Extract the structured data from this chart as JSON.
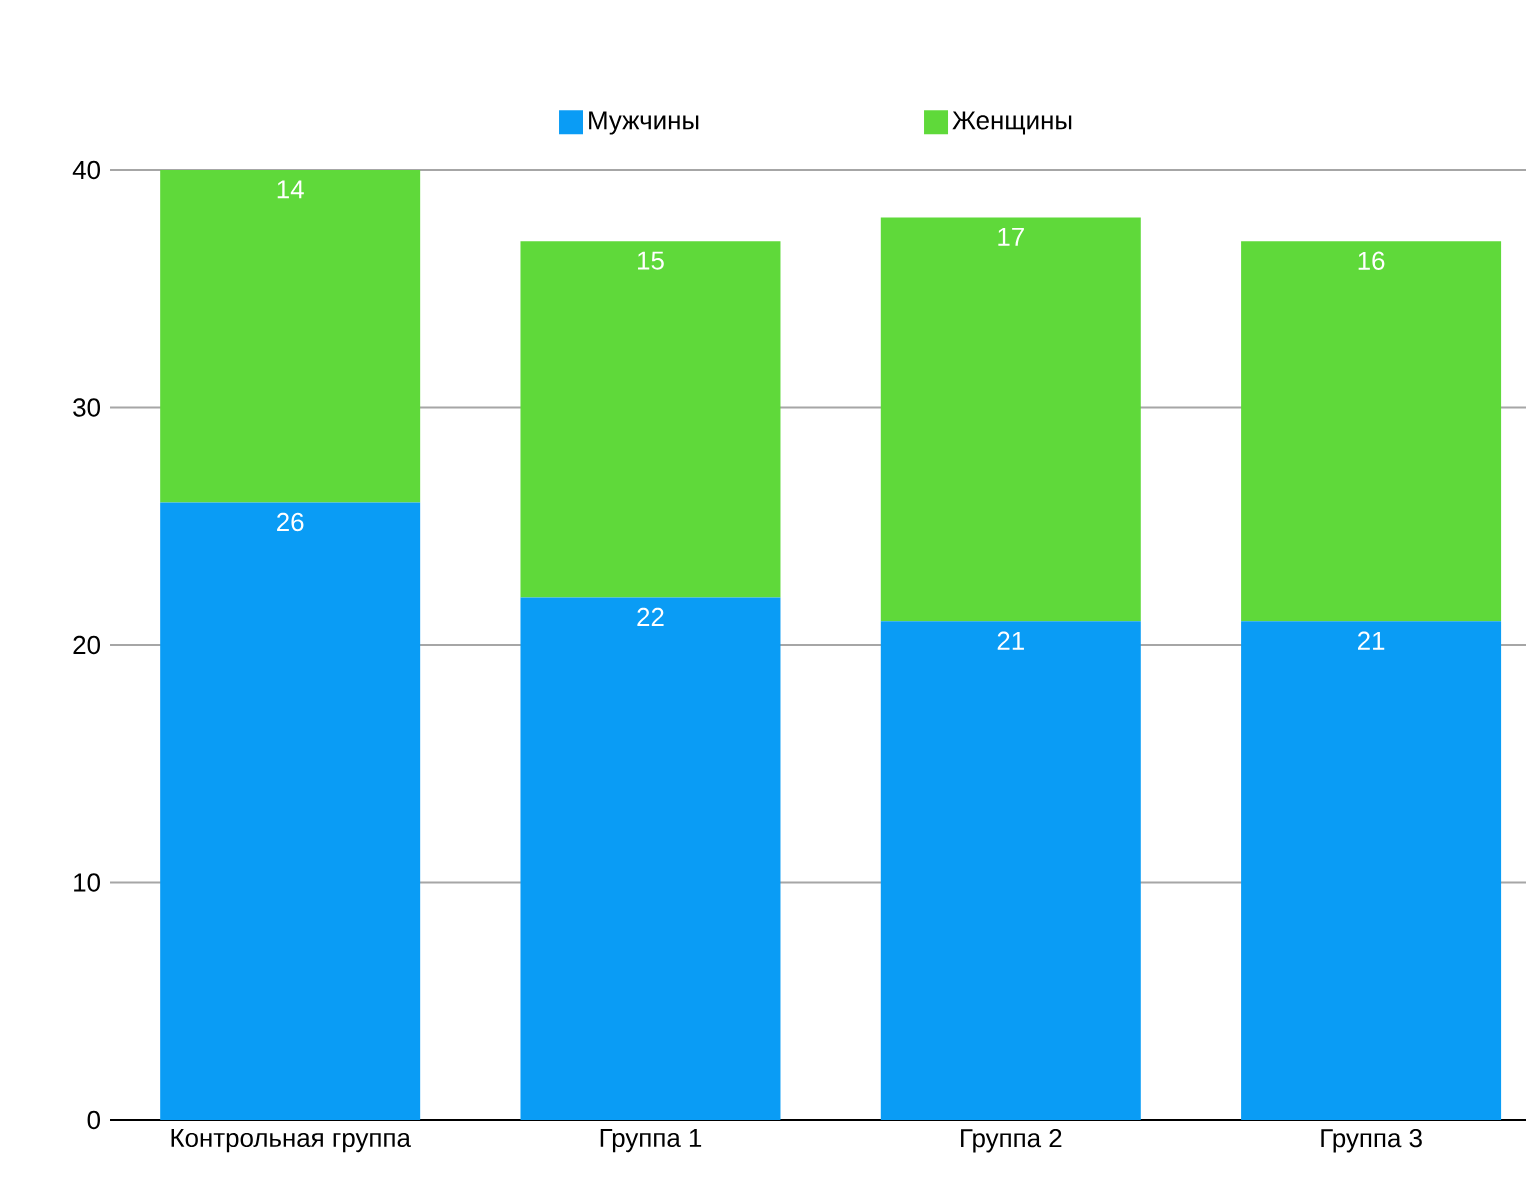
{
  "chart_data": {
    "type": "bar",
    "stacked": true,
    "categories": [
      "Контрольная группа",
      "Группа 1",
      "Группа 2",
      "Группа 3"
    ],
    "series": [
      {
        "name": "Мужчины",
        "color": "#0a9cf5",
        "values": [
          26,
          22,
          21,
          21
        ]
      },
      {
        "name": "Женщины",
        "color": "#5fd93a",
        "values": [
          14,
          15,
          17,
          16
        ]
      }
    ],
    "ylim": [
      0,
      40
    ],
    "yticks": [
      0,
      10,
      20,
      30,
      40
    ],
    "grid": "y",
    "legend": "top",
    "data_labels": true
  }
}
